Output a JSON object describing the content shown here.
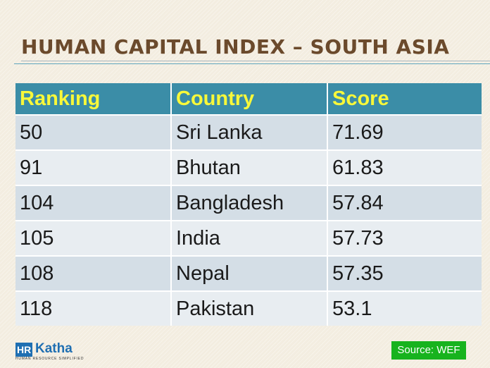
{
  "slide": {
    "title": "HUMAN CAPITAL INDEX – SOUTH ASIA"
  },
  "table": {
    "headers": [
      "Ranking",
      "Country",
      "Score"
    ],
    "rows": [
      [
        "50",
        "Sri Lanka",
        "71.69"
      ],
      [
        "91",
        "Bhutan",
        "61.83"
      ],
      [
        "104",
        "Bangladesh",
        "57.84"
      ],
      [
        "105",
        "India",
        "57.73"
      ],
      [
        "108",
        "Nepal",
        "57.35"
      ],
      [
        "118",
        "Pakistan",
        "53.1"
      ]
    ]
  },
  "logo": {
    "mark": "HR",
    "name": "Katha",
    "tagline": "HUMAN RESOURCE SIMPLIFIED"
  },
  "source": "Source: WEF",
  "colors": {
    "header_bg": "#3b8da7",
    "header_text": "#f8f83a",
    "title": "#6b4a2c",
    "source_bg": "#17b31e"
  }
}
